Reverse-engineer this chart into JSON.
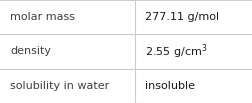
{
  "rows": [
    {
      "label": "molar mass",
      "value": "277.11 g/mol",
      "superscript": null
    },
    {
      "label": "density",
      "value": "2.55 g/cm",
      "superscript": "3"
    },
    {
      "label": "solubility in water",
      "value": "insoluble",
      "superscript": null
    }
  ],
  "bg_color": "#ffffff",
  "grid_color": "#cccccc",
  "label_color": "#404040",
  "value_color": "#1a1a1a",
  "label_fontsize": 8.0,
  "value_fontsize": 8.0,
  "sup_fontsize": 6.0,
  "col_split": 0.535,
  "figsize": [
    2.52,
    1.03
  ],
  "dpi": 100
}
